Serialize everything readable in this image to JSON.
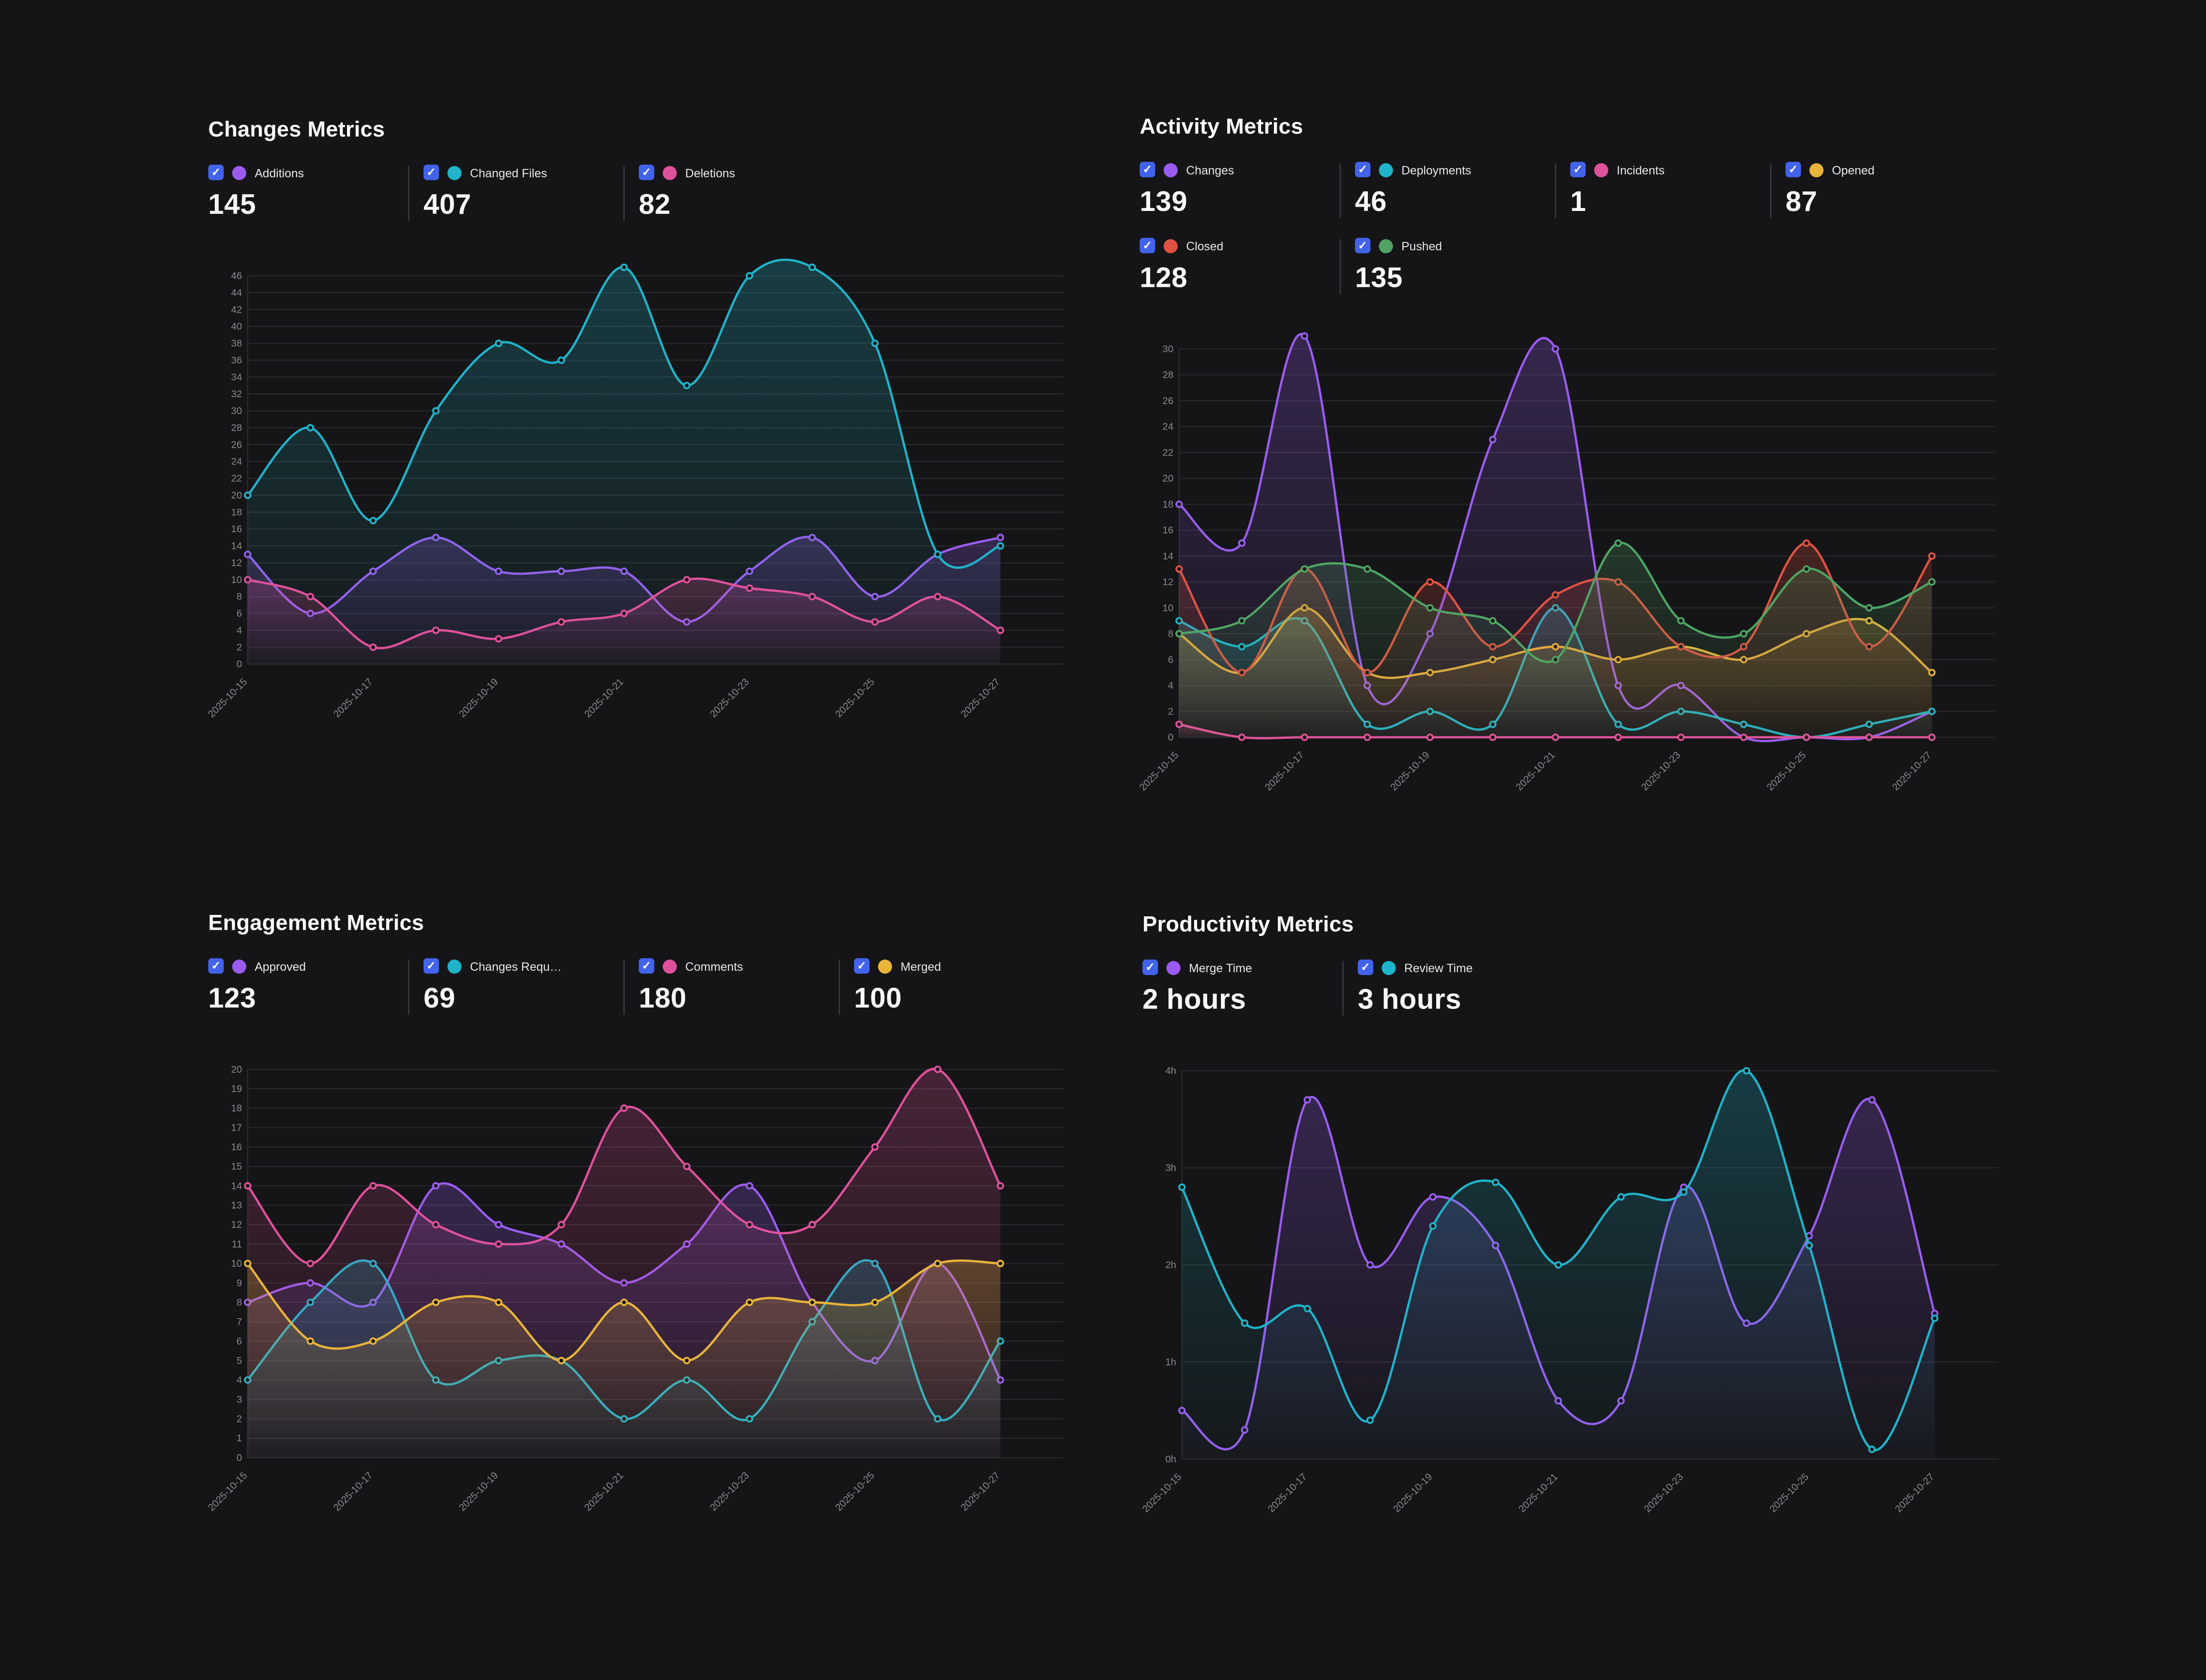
{
  "theme": {
    "background": "#151517",
    "checkbox_blue": "#4263eb",
    "grid_line": "#2a2a2e",
    "tick_text": "#8b8b90",
    "legend_separator": "#38383d",
    "title_text": "#ffffff"
  },
  "chart_data": [
    {
      "type": "line",
      "title": "Changes Metrics",
      "x": [
        "2025-10-15",
        "2025-10-16",
        "2025-10-17",
        "2025-10-18",
        "2025-10-19",
        "2025-10-20",
        "2025-10-21",
        "2025-10-22",
        "2025-10-23",
        "2025-10-24",
        "2025-10-25",
        "2025-10-26",
        "2025-10-27"
      ],
      "x_tick_every": 2,
      "x_tick_labels": [
        "2025-10-15",
        "2025-10-17",
        "2025-10-19",
        "2025-10-21",
        "2025-10-23",
        "2025-10-25",
        "2025-10-27"
      ],
      "ylim": [
        0,
        46
      ],
      "ytick_step": 2,
      "y_suffix": "",
      "grid": true,
      "legend_position": "top",
      "series": [
        {
          "name": "Additions",
          "total": "145",
          "color": "#9a5cf0",
          "values": [
            13,
            6,
            11,
            15,
            11,
            11,
            11,
            5,
            11,
            15,
            8,
            13,
            15
          ]
        },
        {
          "name": "Changed Files",
          "total": "407",
          "color": "#1fb4c9",
          "values": [
            20,
            28,
            17,
            30,
            38,
            36,
            47,
            33,
            46,
            47,
            38,
            13,
            14
          ]
        },
        {
          "name": "Deletions",
          "total": "82",
          "color": "#e0519c",
          "values": [
            10,
            8,
            2,
            4,
            3,
            5,
            6,
            10,
            9,
            8,
            5,
            8,
            4
          ]
        }
      ]
    },
    {
      "type": "line",
      "title": "Activity Metrics",
      "x": [
        "2025-10-15",
        "2025-10-16",
        "2025-10-17",
        "2025-10-18",
        "2025-10-19",
        "2025-10-20",
        "2025-10-21",
        "2025-10-22",
        "2025-10-23",
        "2025-10-24",
        "2025-10-25",
        "2025-10-26",
        "2025-10-27"
      ],
      "x_tick_every": 2,
      "x_tick_labels": [
        "2025-10-15",
        "2025-10-17",
        "2025-10-19",
        "2025-10-21",
        "2025-10-23",
        "2025-10-25",
        "2025-10-27"
      ],
      "ylim": [
        0,
        30
      ],
      "ytick_step": 2,
      "y_suffix": "",
      "grid": true,
      "legend_position": "top",
      "series": [
        {
          "name": "Changes",
          "total": "139",
          "color": "#9a5cf0",
          "values": [
            18,
            15,
            31,
            4,
            8,
            23,
            30,
            4,
            4,
            0,
            0,
            0,
            2
          ]
        },
        {
          "name": "Deployments",
          "total": "46",
          "color": "#1fb4c9",
          "values": [
            9,
            7,
            9,
            1,
            2,
            1,
            10,
            1,
            2,
            1,
            0,
            1,
            2
          ]
        },
        {
          "name": "Incidents",
          "total": "1",
          "color": "#e0519c",
          "values": [
            1,
            0,
            0,
            0,
            0,
            0,
            0,
            0,
            0,
            0,
            0,
            0,
            0
          ]
        },
        {
          "name": "Opened",
          "total": "87",
          "color": "#e8b43a",
          "values": [
            8,
            5,
            10,
            5,
            5,
            6,
            7,
            6,
            7,
            6,
            8,
            9,
            5
          ]
        },
        {
          "name": "Closed",
          "total": "128",
          "color": "#e05243",
          "values": [
            13,
            5,
            13,
            5,
            12,
            7,
            11,
            12,
            7,
            7,
            15,
            7,
            14
          ]
        },
        {
          "name": "Pushed",
          "total": "135",
          "color": "#4fa463",
          "values": [
            8,
            9,
            13,
            13,
            10,
            9,
            6,
            15,
            9,
            8,
            13,
            10,
            12
          ]
        }
      ]
    },
    {
      "type": "line",
      "title": "Engagement Metrics",
      "x": [
        "2025-10-15",
        "2025-10-16",
        "2025-10-17",
        "2025-10-18",
        "2025-10-19",
        "2025-10-20",
        "2025-10-21",
        "2025-10-22",
        "2025-10-23",
        "2025-10-24",
        "2025-10-25",
        "2025-10-26",
        "2025-10-27"
      ],
      "x_tick_every": 2,
      "x_tick_labels": [
        "2025-10-15",
        "2025-10-17",
        "2025-10-19",
        "2025-10-21",
        "2025-10-23",
        "2025-10-25",
        "2025-10-27"
      ],
      "ylim": [
        0,
        20
      ],
      "ytick_step": 1,
      "y_suffix": "",
      "grid": true,
      "legend_position": "top",
      "series": [
        {
          "name": "Approved",
          "total": "123",
          "color": "#9a5cf0",
          "values": [
            8,
            9,
            8,
            14,
            12,
            11,
            9,
            11,
            14,
            8,
            5,
            10,
            4
          ]
        },
        {
          "name": "Changes Requ…",
          "total": "69",
          "color": "#1fb4c9",
          "values": [
            4,
            8,
            10,
            4,
            5,
            5,
            2,
            4,
            2,
            7,
            10,
            2,
            6
          ]
        },
        {
          "name": "Comments",
          "total": "180",
          "color": "#e0519c",
          "values": [
            14,
            10,
            14,
            12,
            11,
            12,
            18,
            15,
            12,
            12,
            16,
            20,
            14
          ]
        },
        {
          "name": "Merged",
          "total": "100",
          "color": "#e8b43a",
          "values": [
            10,
            6,
            6,
            8,
            8,
            5,
            8,
            5,
            8,
            8,
            8,
            10,
            10
          ]
        }
      ]
    },
    {
      "type": "line",
      "title": "Productivity Metrics",
      "x": [
        "2025-10-15",
        "2025-10-16",
        "2025-10-17",
        "2025-10-18",
        "2025-10-19",
        "2025-10-20",
        "2025-10-21",
        "2025-10-22",
        "2025-10-23",
        "2025-10-24",
        "2025-10-25",
        "2025-10-26",
        "2025-10-27"
      ],
      "x_tick_every": 2,
      "x_tick_labels": [
        "2025-10-15",
        "2025-10-17",
        "2025-10-19",
        "2025-10-21",
        "2025-10-23",
        "2025-10-25",
        "2025-10-27"
      ],
      "ylim": [
        0,
        4
      ],
      "ytick_step": 1,
      "y_suffix": "h",
      "grid": true,
      "legend_position": "top",
      "series": [
        {
          "name": "Merge Time",
          "total": "2 hours",
          "color": "#9a5cf0",
          "values": [
            0.5,
            0.3,
            3.7,
            2.0,
            2.7,
            2.2,
            0.6,
            0.6,
            2.8,
            1.4,
            2.3,
            3.7,
            1.5
          ]
        },
        {
          "name": "Review Time",
          "total": "3 hours",
          "color": "#1fb4c9",
          "values": [
            2.8,
            1.4,
            1.55,
            0.4,
            2.4,
            2.85,
            2.0,
            2.7,
            2.75,
            4.0,
            2.2,
            0.1,
            1.45
          ]
        }
      ]
    }
  ]
}
